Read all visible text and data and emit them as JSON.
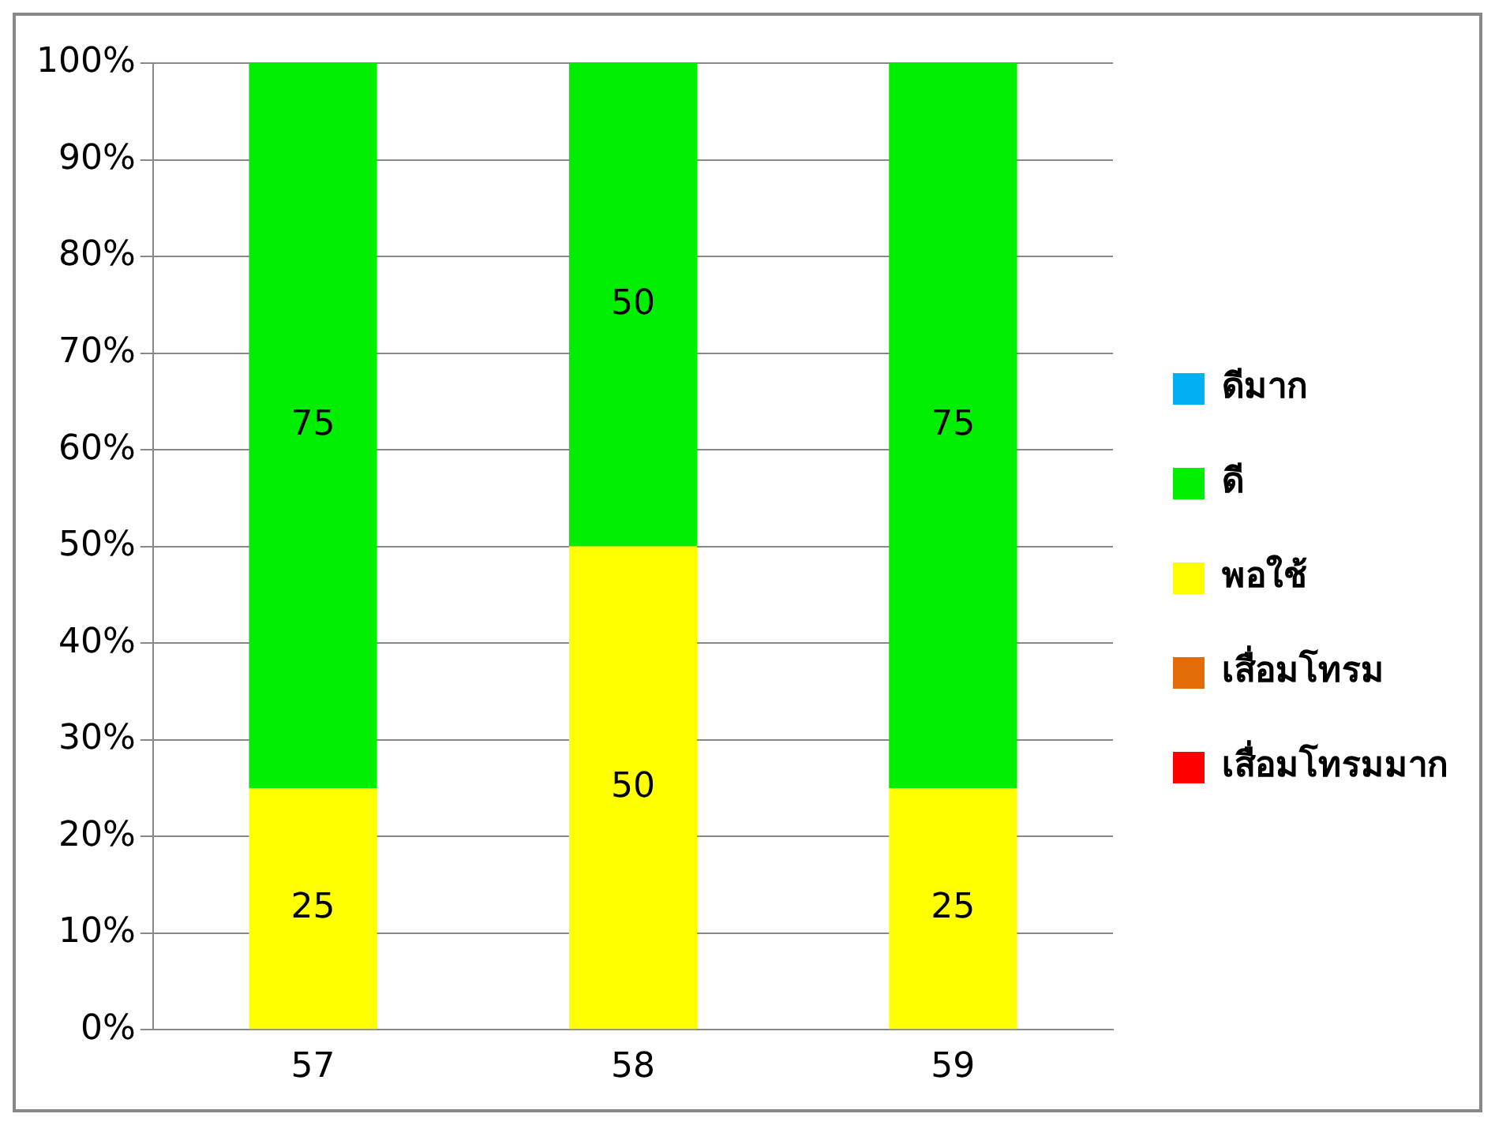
{
  "chart_data": {
    "type": "bar",
    "stacked": true,
    "categories": [
      "57",
      "58",
      "59"
    ],
    "series": [
      {
        "name": "เสื่อมโทรมมาก",
        "color": "#ff0000",
        "values": [
          0,
          0,
          0
        ]
      },
      {
        "name": "เสื่อมโทรม",
        "color": "#e36c09",
        "values": [
          0,
          0,
          0
        ]
      },
      {
        "name": "พอใช้",
        "color": "#ffff00",
        "values": [
          25,
          50,
          25
        ],
        "value_labels": [
          "25",
          "50",
          "25"
        ]
      },
      {
        "name": "ดี",
        "color": "#00ee00",
        "values": [
          75,
          50,
          75
        ],
        "value_labels": [
          "75",
          "50",
          "75"
        ]
      },
      {
        "name": "ดีมาก",
        "color": "#00b0f0",
        "values": [
          0,
          0,
          0
        ]
      }
    ],
    "ylim": [
      0,
      100
    ],
    "yticks": [
      {
        "value": 0,
        "label": "0%"
      },
      {
        "value": 10,
        "label": "10%"
      },
      {
        "value": 20,
        "label": "20%"
      },
      {
        "value": 30,
        "label": "30%"
      },
      {
        "value": 40,
        "label": "40%"
      },
      {
        "value": 50,
        "label": "50%"
      },
      {
        "value": 60,
        "label": "60%"
      },
      {
        "value": 70,
        "label": "70%"
      },
      {
        "value": 80,
        "label": "80%"
      },
      {
        "value": 90,
        "label": "90%"
      },
      {
        "value": 100,
        "label": "100%"
      }
    ],
    "grid": "y",
    "legend": "right"
  }
}
